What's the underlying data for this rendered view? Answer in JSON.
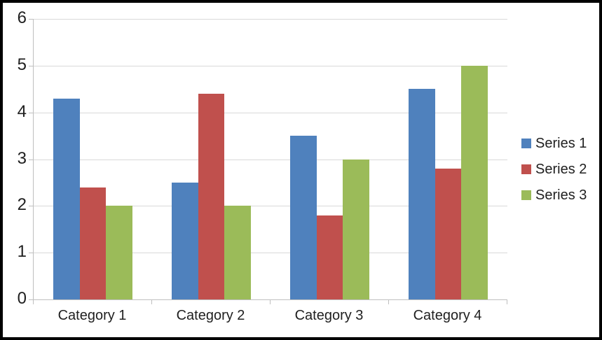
{
  "chart_data": {
    "type": "bar",
    "title": "",
    "xlabel": "",
    "ylabel": "",
    "categories": [
      "Category 1",
      "Category 2",
      "Category 3",
      "Category 4"
    ],
    "series": [
      {
        "name": "Series 1",
        "color": "#4F81BD",
        "values": [
          4.3,
          2.5,
          3.5,
          4.5
        ]
      },
      {
        "name": "Series 2",
        "color": "#C0504D",
        "values": [
          2.4,
          4.4,
          1.8,
          2.8
        ]
      },
      {
        "name": "Series 3",
        "color": "#9BBB59",
        "values": [
          2.0,
          2.0,
          3.0,
          5.0
        ]
      }
    ],
    "ylim": [
      0,
      6
    ],
    "yticks": [
      0,
      1,
      2,
      3,
      4,
      5,
      6
    ],
    "grid": true,
    "legend_position": "right",
    "bar_gap_ratio": 1.5
  },
  "colors": {
    "gridline": "#d9d9d9",
    "axis": "#bfbfbf",
    "text": "#1f1f1f",
    "background": "#ffffff",
    "frame_border": "#000000"
  }
}
